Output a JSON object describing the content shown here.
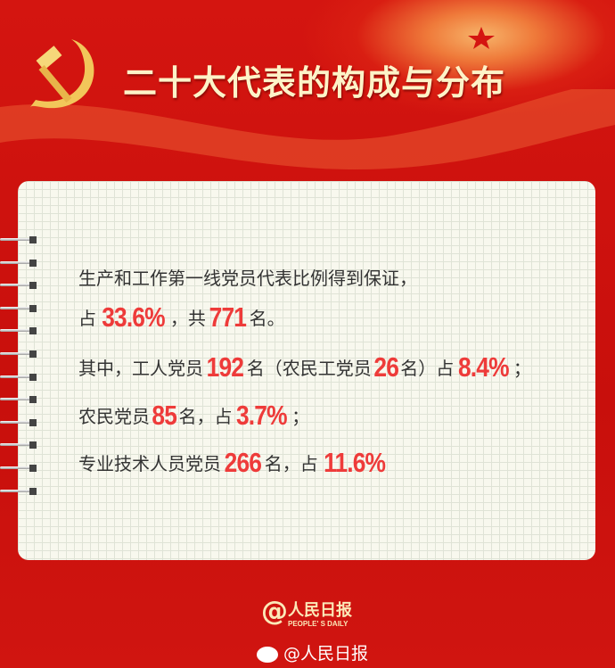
{
  "header": {
    "title": "二十大代表的构成与分布",
    "emblem_icon": "hammer-sickle-icon"
  },
  "content": {
    "line1": {
      "text": "生产和工作第一线党员代表比例得到保证，"
    },
    "line2": {
      "t1": "占",
      "n1": "33.6%",
      "t2": "，共",
      "n2": "771",
      "t3": "名。"
    },
    "line3": {
      "t1": "其中，工人党员",
      "n1": "192",
      "t2": "名（农民工党员",
      "n2": "26",
      "t3": "名）占",
      "n3": "8.4%",
      "t4": "；"
    },
    "line4": {
      "t1": "农民党员",
      "n1": "85",
      "t2": "名，占",
      "n2": "3.7%",
      "t3": "；"
    },
    "line5": {
      "t1": "专业技术人员党员",
      "n1": "266",
      "t2": "名，占",
      "n2": "11.6%"
    }
  },
  "footer": {
    "logo_cn": "人民日报",
    "logo_en": "PEOPLE' S DAILY",
    "weibo": "@人民日报"
  },
  "colors": {
    "highlight": "#ee3b3a",
    "background": "#d41510",
    "title": "#fdf3c8"
  }
}
